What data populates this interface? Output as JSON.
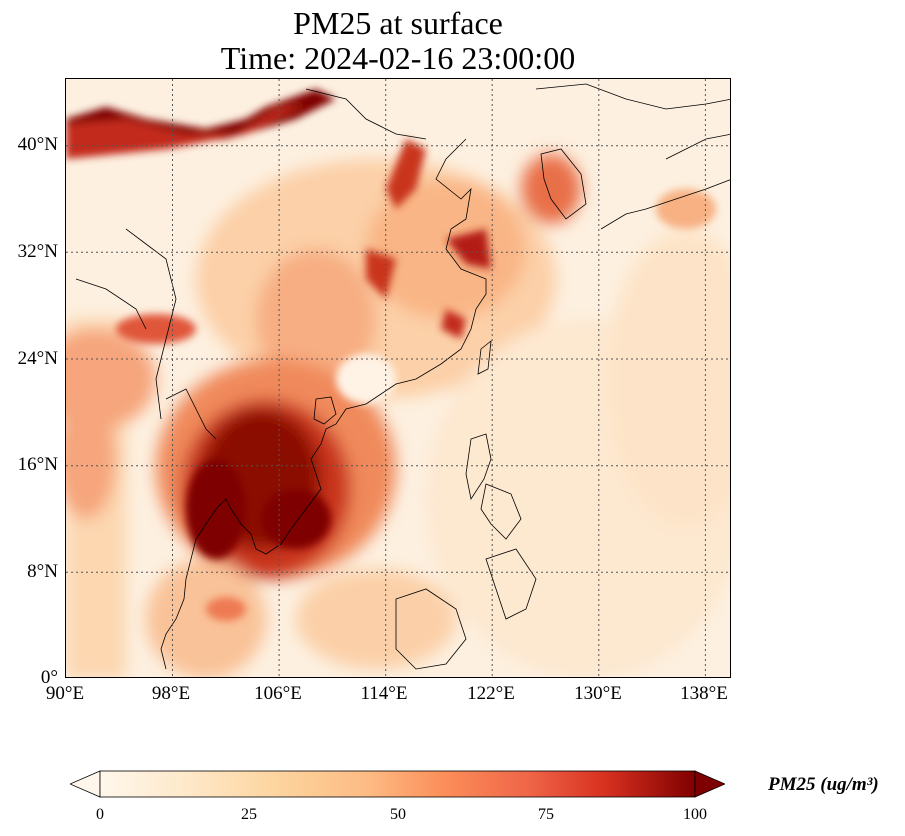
{
  "title": {
    "line1": "PM25 at surface",
    "line2": "Time: 2024-02-16 23:00:00"
  },
  "map": {
    "lon_range": [
      90,
      140
    ],
    "lat_range": [
      0,
      45
    ],
    "lon_ticks": [
      "90°E",
      "98°E",
      "106°E",
      "114°E",
      "122°E",
      "130°E",
      "138°E"
    ],
    "lat_ticks": [
      "40°N",
      "32°N",
      "24°N",
      "16°N",
      "8°N",
      "0°"
    ],
    "gridlines": "dotted"
  },
  "colorbar": {
    "label": "PM25 (ug/m³)",
    "ticks": [
      "0",
      "25",
      "50",
      "75",
      "100"
    ],
    "colormap": "OrRd",
    "min": 0,
    "max": 100,
    "extend": "both"
  },
  "colors": {
    "low": "#fff7ec",
    "mid": "#fc8d59",
    "high": "#7f0000"
  }
}
